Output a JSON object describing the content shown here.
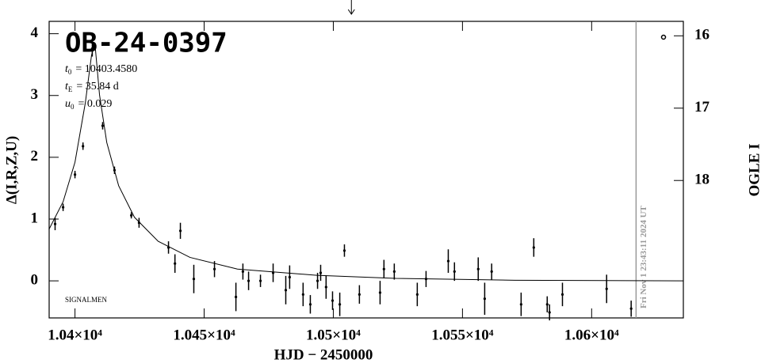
{
  "chart_data": {
    "type": "scatter",
    "title": "OB-24-0397",
    "params": [
      {
        "symbol": "t",
        "sub": "0",
        "text": "= 10403.4580"
      },
      {
        "symbol": "t",
        "sub": "E",
        "text": "= 35.84 d"
      },
      {
        "symbol": "u",
        "sub": "0",
        "text": "= 0.029"
      }
    ],
    "note": "SIGNALMEN",
    "x_label": "HJD − 2450000",
    "y_label": "Δ(I,R,Z,U)",
    "y2_label": "OGLE I",
    "xlim": [
      10390,
      10635.5
    ],
    "ylim": [
      -0.6,
      4.2
    ],
    "y2lim": [
      19.9,
      15.8
    ],
    "xticks": [
      {
        "value": 10400,
        "label": "1.04×10⁴"
      },
      {
        "value": 10450,
        "label": "1.045×10⁴"
      },
      {
        "value": 10500,
        "label": "1.05×10⁴"
      },
      {
        "value": 10550,
        "label": "1.055×10⁴"
      },
      {
        "value": 10600,
        "label": "1.06×10⁴"
      }
    ],
    "yticks": [
      0,
      1,
      2,
      3,
      4
    ],
    "y2ticks": [
      16,
      17,
      18
    ],
    "now_line": {
      "x": 10617.2,
      "label": "Fri Nov  1 23:43:11 2024 UT",
      "color": "#999999"
    },
    "marker_x": 10507,
    "series": [
      {
        "style": "errorbar",
        "color": "#000000",
        "x": [
          10392.3,
          10395.4,
          10400.0,
          10403.1,
          10406.7,
          10410.7,
          10415.3,
          10421.8,
          10424.8,
          10436.2,
          10438.7,
          10440.8,
          10446.0,
          10454.0,
          10462.3,
          10465.0,
          10467.2,
          10471.8,
          10476.7,
          10481.6,
          10483.1,
          10488.3,
          10491.1,
          10493.9,
          10495.1,
          10497.2,
          10499.7,
          10502.5,
          10504.3,
          10510.1,
          10518.1,
          10519.6,
          10523.6,
          10532.5,
          10535.9,
          10544.5,
          10546.9,
          10556.1,
          10558.6,
          10561.3,
          10572.7,
          10577.6,
          10582.8,
          10583.7,
          10588.7,
          10605.8,
          10615.3
        ],
        "values": [
          0.92,
          1.19,
          1.72,
          2.18,
          3.76,
          2.51,
          1.79,
          1.06,
          0.94,
          0.54,
          0.28,
          0.81,
          0.03,
          0.19,
          -0.26,
          0.15,
          0.0,
          0.0,
          0.13,
          -0.15,
          0.06,
          -0.22,
          -0.38,
          0.0,
          0.13,
          -0.1,
          -0.32,
          -0.38,
          0.49,
          -0.22,
          -0.19,
          0.19,
          0.15,
          -0.22,
          0.03,
          0.32,
          0.15,
          0.19,
          -0.29,
          0.15,
          -0.38,
          0.54,
          -0.38,
          -0.51,
          -0.22,
          -0.13,
          -0.45
        ],
        "errors": [
          0.1,
          0.06,
          0.06,
          0.06,
          0.13,
          0.06,
          0.06,
          0.05,
          0.08,
          0.1,
          0.15,
          0.13,
          0.23,
          0.13,
          0.23,
          0.13,
          0.15,
          0.1,
          0.15,
          0.23,
          0.19,
          0.19,
          0.15,
          0.13,
          0.13,
          0.19,
          0.15,
          0.19,
          0.1,
          0.15,
          0.19,
          0.15,
          0.13,
          0.19,
          0.13,
          0.19,
          0.15,
          0.19,
          0.26,
          0.13,
          0.19,
          0.15,
          0.13,
          0.13,
          0.19,
          0.23,
          0.13
        ]
      },
      {
        "style": "line",
        "color": "#000000",
        "x": [
          10389.9,
          10395.4,
          10400.0,
          10404.0,
          10406.4,
          10407.7,
          10409.5,
          10412.3,
          10416.9,
          10423.0,
          10432.2,
          10444.5,
          10462.9,
          10493.6,
          10524.2,
          10570.2,
          10635.5
        ],
        "values": [
          0.83,
          1.28,
          1.92,
          2.88,
          3.65,
          3.85,
          3.01,
          2.24,
          1.54,
          1.03,
          0.64,
          0.38,
          0.19,
          0.09,
          0.04,
          0.01,
          0.0
        ]
      }
    ]
  }
}
